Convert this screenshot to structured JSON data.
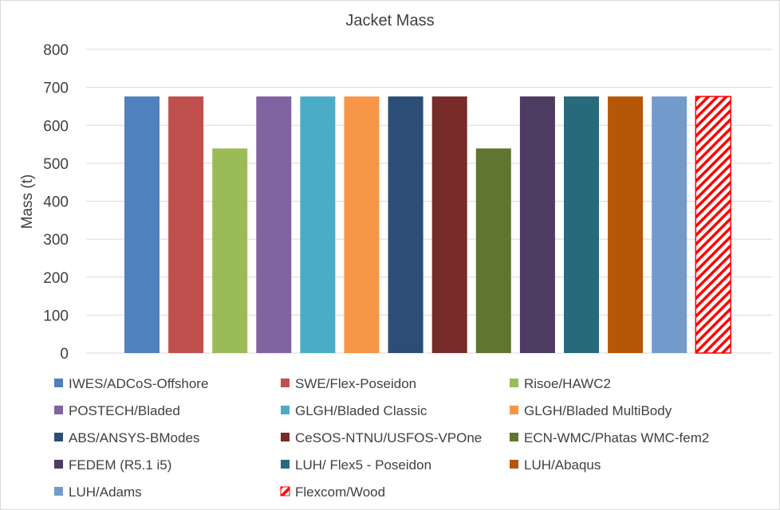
{
  "chart_data": {
    "type": "bar",
    "title": "Jacket Mass",
    "xlabel": "",
    "ylabel": "Mass (t)",
    "ylim": [
      0,
      800
    ],
    "yticks": [
      0,
      100,
      200,
      300,
      400,
      500,
      600,
      700,
      800
    ],
    "grid": true,
    "legend_position": "bottom",
    "series": [
      {
        "name": "IWES/ADCoS-Offshore",
        "value": 676,
        "color": "#4f81bd"
      },
      {
        "name": "SWE/Flex-Poseidon",
        "value": 676,
        "color": "#c0504d"
      },
      {
        "name": "Risoe/HAWC2",
        "value": 539,
        "color": "#9bbb59"
      },
      {
        "name": "POSTECH/Bladed",
        "value": 676,
        "color": "#8064a2"
      },
      {
        "name": "GLGH/Bladed Classic",
        "value": 676,
        "color": "#4bacc6"
      },
      {
        "name": "GLGH/Bladed MultiBody",
        "value": 676,
        "color": "#f79646"
      },
      {
        "name": "ABS/ANSYS-BModes",
        "value": 676,
        "color": "#2c4d75"
      },
      {
        "name": "CeSOS-NTNU/USFOS-VPOne",
        "value": 676,
        "color": "#772c2a"
      },
      {
        "name": "ECN-WMC/Phatas WMC-fem2",
        "value": 539,
        "color": "#5f7530"
      },
      {
        "name": "FEDEM (R5.1 i5)",
        "value": 676,
        "color": "#4d3b62"
      },
      {
        "name": "LUH/ Flex5 - Poseidon",
        "value": 676,
        "color": "#276a7c"
      },
      {
        "name": "LUH/Abaqus",
        "value": 676,
        "color": "#b65708"
      },
      {
        "name": "LUH/Adams",
        "value": 676,
        "color": "#729aca"
      },
      {
        "name": "Flexcom/Wood",
        "value": 676,
        "color": "#ff0000",
        "pattern": "diagonal-hatch"
      }
    ]
  }
}
